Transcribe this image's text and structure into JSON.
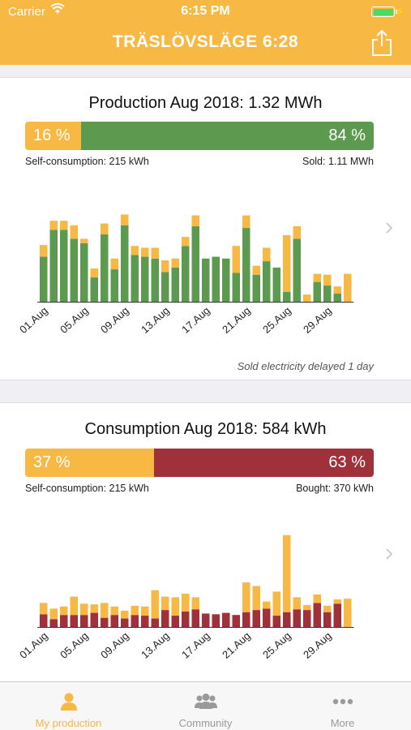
{
  "status": {
    "carrier": "Carrier",
    "time": "6:15 PM"
  },
  "header": {
    "title": "TRÄSLÖVSLÄGE 6:28"
  },
  "production": {
    "title": "Production Aug 2018: 1.32 MWh",
    "self_pct": 16,
    "self_pct_label": "16 %",
    "other_pct_label": "84 %",
    "self_label": "Self-consumption: 215 kWh",
    "other_label": "Sold: 1.11 MWh",
    "note": "Sold electricity delayed 1 day",
    "colors": {
      "self": "#f7b844",
      "other": "#5b9a4f"
    }
  },
  "consumption": {
    "title": "Consumption Aug 2018: 584 kWh",
    "self_pct": 37,
    "self_pct_label": "37 %",
    "other_pct_label": "63 %",
    "self_label": "Self-consumption: 215 kWh",
    "other_label": "Bought: 370 kWh",
    "colors": {
      "self": "#f7b844",
      "other": "#a0303a"
    }
  },
  "chart_data": [
    {
      "type": "bar",
      "stacked": true,
      "categories": [
        "01.Aug",
        "02.Aug",
        "03.Aug",
        "04.Aug",
        "05.Aug",
        "06.Aug",
        "07.Aug",
        "08.Aug",
        "09.Aug",
        "10.Aug",
        "11.Aug",
        "12.Aug",
        "13.Aug",
        "14.Aug",
        "15.Aug",
        "16.Aug",
        "17.Aug",
        "18.Aug",
        "19.Aug",
        "20.Aug",
        "21.Aug",
        "22.Aug",
        "23.Aug",
        "24.Aug",
        "25.Aug",
        "26.Aug",
        "27.Aug",
        "28.Aug",
        "29.Aug",
        "30.Aug",
        "31.Aug"
      ],
      "tick_labels": [
        "01.Aug",
        "05.Aug",
        "09.Aug",
        "13.Aug",
        "17.Aug",
        "21.Aug",
        "25.Aug",
        "29.Aug"
      ],
      "series": [
        {
          "values": [
            50,
            80,
            80,
            70,
            65,
            27,
            75,
            36,
            85,
            52,
            50,
            48,
            33,
            38,
            62,
            84,
            48,
            50,
            48,
            32,
            82,
            30,
            45,
            38,
            11,
            70,
            0,
            22,
            18,
            9,
            0
          ]
        },
        {
          "values": [
            13,
            10,
            10,
            15,
            5,
            10,
            12,
            12,
            12,
            10,
            10,
            12,
            13,
            10,
            10,
            12,
            0,
            0,
            0,
            30,
            14,
            10,
            15,
            0,
            63,
            14,
            8,
            9,
            12,
            8,
            31
          ]
        }
      ],
      "ylim": [
        0,
        110
      ]
    },
    {
      "type": "bar",
      "stacked": true,
      "categories": [
        "01.Aug",
        "02.Aug",
        "03.Aug",
        "04.Aug",
        "05.Aug",
        "06.Aug",
        "07.Aug",
        "08.Aug",
        "09.Aug",
        "10.Aug",
        "11.Aug",
        "12.Aug",
        "13.Aug",
        "14.Aug",
        "15.Aug",
        "16.Aug",
        "17.Aug",
        "18.Aug",
        "19.Aug",
        "20.Aug",
        "21.Aug",
        "22.Aug",
        "23.Aug",
        "24.Aug",
        "25.Aug",
        "26.Aug",
        "27.Aug",
        "28.Aug",
        "29.Aug",
        "30.Aug",
        "31.Aug"
      ],
      "tick_labels": [
        "01.Aug",
        "05.Aug",
        "09.Aug",
        "13.Aug",
        "17.Aug",
        "21.Aug",
        "25.Aug",
        "29.Aug"
      ],
      "series": [
        {
          "values": [
            18,
            11,
            17,
            17,
            17,
            20,
            13,
            17,
            12,
            17,
            16,
            12,
            24,
            16,
            22,
            25,
            19,
            18,
            20,
            17,
            21,
            24,
            26,
            16,
            21,
            25,
            24,
            34,
            21,
            33,
            0
          ]
        },
        {
          "values": [
            16,
            15,
            12,
            26,
            16,
            12,
            21,
            12,
            11,
            13,
            13,
            40,
            19,
            26,
            25,
            17,
            0,
            0,
            0,
            0,
            42,
            34,
            10,
            34,
            109,
            17,
            7,
            12,
            9,
            6,
            40
          ]
        }
      ],
      "ylim": [
        0,
        140
      ]
    }
  ],
  "tabs": [
    {
      "label": "My production",
      "icon": "person-icon",
      "active": true
    },
    {
      "label": "Community",
      "icon": "group-icon",
      "active": false
    },
    {
      "label": "More",
      "icon": "more-icon",
      "active": false
    }
  ]
}
